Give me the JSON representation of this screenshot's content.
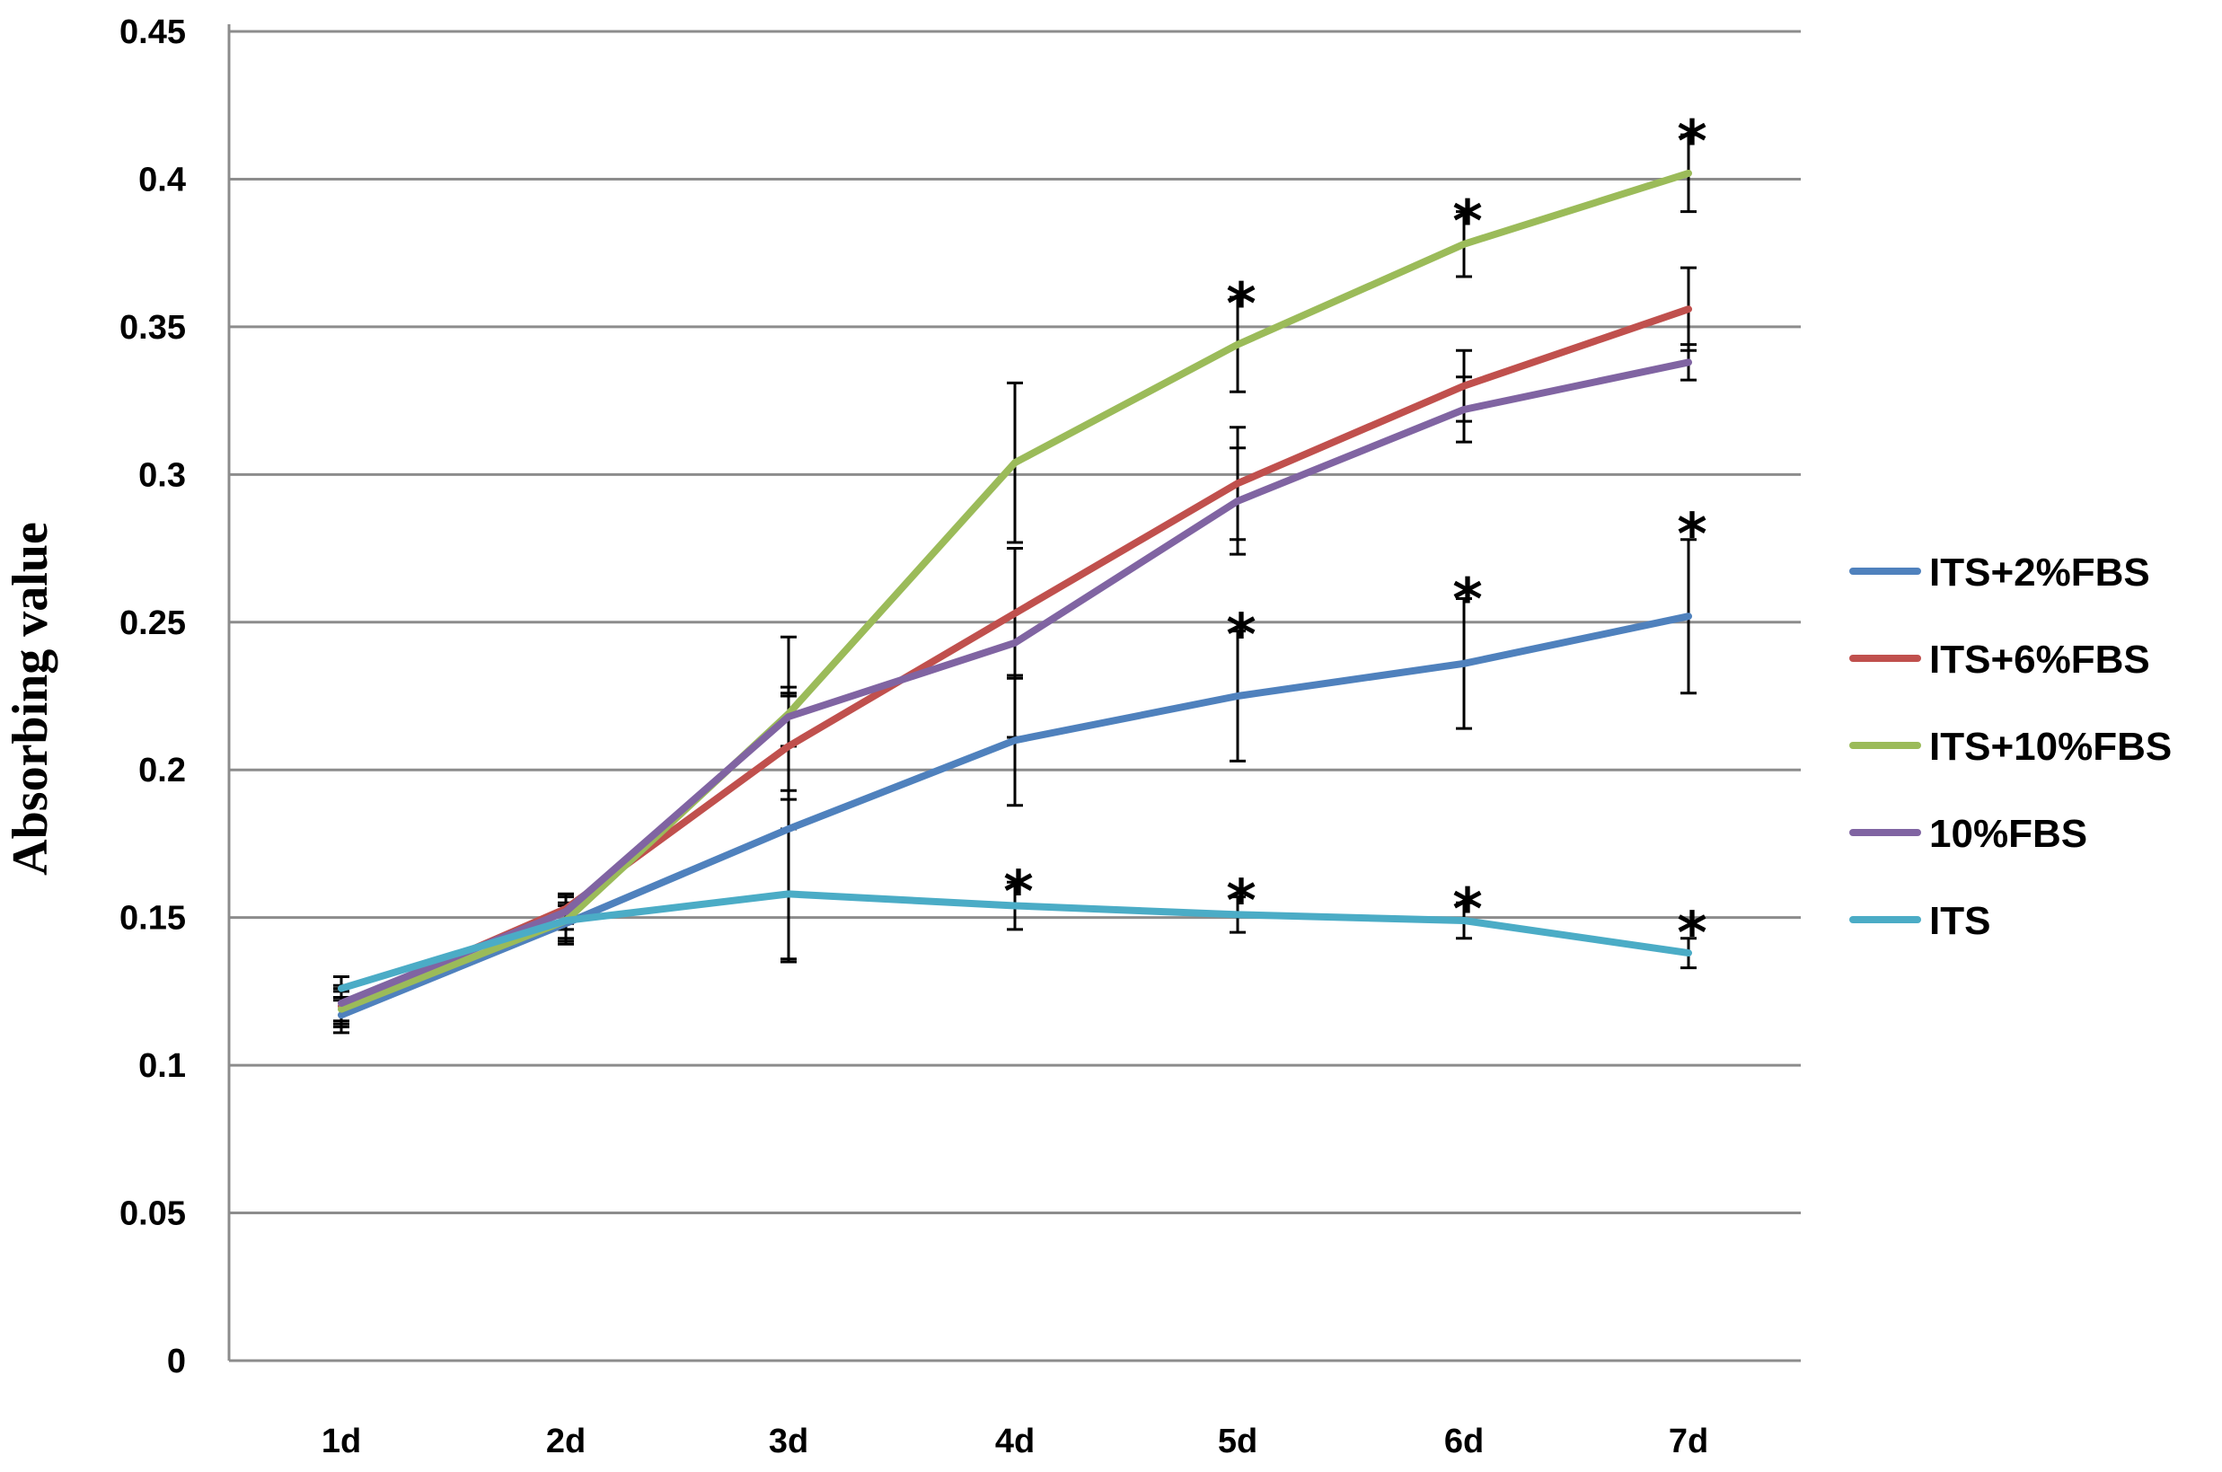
{
  "chart_data": {
    "type": "line",
    "title": "",
    "xlabel": "",
    "ylabel": "Absorbing value",
    "categories": [
      "1d",
      "2d",
      "3d",
      "4d",
      "5d",
      "6d",
      "7d"
    ],
    "ylim": [
      0,
      0.45
    ],
    "yticks": [
      "0",
      "0.05",
      "0.1",
      "0.15",
      "0.2",
      "0.25",
      "0.3",
      "0.35",
      "0.4",
      "0.45"
    ],
    "grid": "horizontal",
    "legend": "right",
    "series": [
      {
        "name": "ITS+2%FBS",
        "color": "#4f81bd",
        "values": [
          0.117,
          0.148,
          0.18,
          0.21,
          0.225,
          0.236,
          0.252
        ],
        "errors": [
          0.006,
          0.006,
          0.045,
          0.022,
          0.022,
          0.022,
          0.026
        ]
      },
      {
        "name": "ITS+6%FBS",
        "color": "#c0504d",
        "values": [
          0.12,
          0.153,
          0.208,
          0.253,
          0.297,
          0.33,
          0.356
        ],
        "errors": [
          0.006,
          0.005,
          0.018,
          0.022,
          0.019,
          0.012,
          0.014
        ]
      },
      {
        "name": "ITS+10%FBS",
        "color": "#9bbb59",
        "values": [
          0.119,
          0.149,
          0.219,
          0.304,
          0.344,
          0.378,
          0.402
        ],
        "errors": [
          0.006,
          0.006,
          0.026,
          0.027,
          0.016,
          0.011,
          0.013
        ]
      },
      {
        "name": "10%FBS",
        "color": "#8064a2",
        "values": [
          0.121,
          0.152,
          0.218,
          0.243,
          0.291,
          0.322,
          0.338
        ],
        "errors": [
          0.006,
          0.006,
          0.01,
          0.032,
          0.018,
          0.011,
          0.006
        ]
      },
      {
        "name": "ITS",
        "color": "#4bacc6",
        "values": [
          0.126,
          0.149,
          0.158,
          0.154,
          0.151,
          0.149,
          0.138
        ],
        "errors": [
          0.004,
          0.008,
          0.022,
          0.008,
          0.006,
          0.006,
          0.005
        ]
      }
    ],
    "annotations": [
      {
        "text": "*",
        "category": "5d",
        "y": 0.362
      },
      {
        "text": "*",
        "category": "6d",
        "y": 0.39
      },
      {
        "text": "*",
        "category": "7d",
        "y": 0.417
      },
      {
        "text": "*",
        "category": "5d",
        "y": 0.25
      },
      {
        "text": "*",
        "category": "6d",
        "y": 0.262
      },
      {
        "text": "*",
        "category": "7d",
        "y": 0.284
      },
      {
        "text": "*",
        "category": "4d",
        "y": 0.163
      },
      {
        "text": "*",
        "category": "5d",
        "y": 0.16
      },
      {
        "text": "*",
        "category": "6d",
        "y": 0.157
      },
      {
        "text": "*",
        "category": "7d",
        "y": 0.149
      }
    ]
  }
}
